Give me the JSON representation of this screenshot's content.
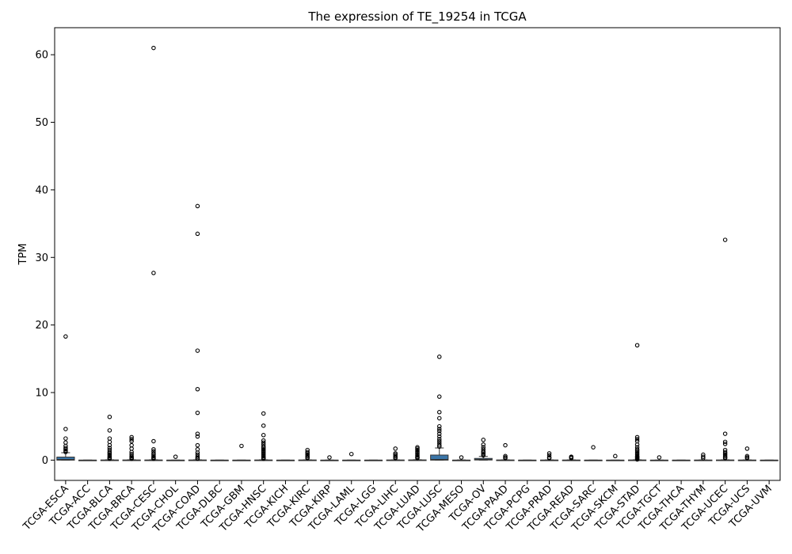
{
  "chart_data": {
    "type": "box",
    "title": "The expression of TE_19254 in TCGA",
    "xlabel": "",
    "ylabel": "TPM",
    "ylim": [
      -3,
      64
    ],
    "yticks": [
      0,
      10,
      20,
      30,
      40,
      50,
      60
    ],
    "grid": false,
    "box_color": "#3a75a8",
    "categories": [
      "TCGA-ESCA",
      "TCGA-ACC",
      "TCGA-BLCA",
      "TCGA-BRCA",
      "TCGA-CESC",
      "TCGA-CHOL",
      "TCGA-COAD",
      "TCGA-DLBC",
      "TCGA-GBM",
      "TCGA-HNSC",
      "TCGA-KICH",
      "TCGA-KIRC",
      "TCGA-KIRP",
      "TCGA-LAML",
      "TCGA-LGG",
      "TCGA-LIHC",
      "TCGA-LUAD",
      "TCGA-LUSC",
      "TCGA-MESO",
      "TCGA-OV",
      "TCGA-PAAD",
      "TCGA-PCPG",
      "TCGA-PRAD",
      "TCGA-READ",
      "TCGA-SARC",
      "TCGA-SKCM",
      "TCGA-STAD",
      "TCGA-TGCT",
      "TCGA-THCA",
      "TCGA-THYM",
      "TCGA-UCEC",
      "TCGA-UCS",
      "TCGA-UVM"
    ],
    "boxes": [
      {
        "q1": 0.0,
        "median": 0.1,
        "q3": 0.45,
        "whislo": 0,
        "whishi": 1.1,
        "outliers": [
          18.3,
          4.6,
          3.2,
          2.6,
          2.1,
          1.8,
          1.6,
          1.4,
          1.2
        ]
      },
      {
        "q1": 0,
        "median": 0,
        "q3": 0,
        "whislo": 0,
        "whishi": 0,
        "outliers": []
      },
      {
        "q1": 0,
        "median": 0,
        "q3": 0.02,
        "whislo": 0,
        "whishi": 0.05,
        "outliers": [
          6.4,
          4.4,
          3.2,
          2.7,
          2.2,
          1.8,
          1.5,
          1.2,
          1.0,
          0.8,
          0.6,
          0.4,
          0.3,
          0.2
        ]
      },
      {
        "q1": 0,
        "median": 0,
        "q3": 0.02,
        "whislo": 0,
        "whishi": 0.05,
        "outliers": [
          3.4,
          3.1,
          2.8,
          2.2,
          1.7,
          1.2,
          0.9,
          0.6,
          0.4,
          0.3,
          0.2
        ]
      },
      {
        "q1": 0,
        "median": 0,
        "q3": 0.02,
        "whislo": 0,
        "whishi": 0.05,
        "outliers": [
          61.0,
          27.7,
          2.8,
          1.6,
          1.3,
          1.0,
          0.8,
          0.6,
          0.4,
          0.3,
          0.2
        ]
      },
      {
        "q1": 0,
        "median": 0,
        "q3": 0,
        "whislo": 0,
        "whishi": 0,
        "outliers": [
          0.5
        ]
      },
      {
        "q1": 0,
        "median": 0,
        "q3": 0.02,
        "whislo": 0,
        "whishi": 0.05,
        "outliers": [
          37.6,
          33.5,
          16.2,
          10.5,
          7.0,
          3.9,
          3.5,
          2.2,
          1.6,
          1.1,
          0.8,
          0.5,
          0.3,
          0.2
        ]
      },
      {
        "q1": 0,
        "median": 0,
        "q3": 0,
        "whislo": 0,
        "whishi": 0,
        "outliers": []
      },
      {
        "q1": 0,
        "median": 0,
        "q3": 0,
        "whislo": 0,
        "whishi": 0,
        "outliers": [
          2.1
        ]
      },
      {
        "q1": 0,
        "median": 0,
        "q3": 0.02,
        "whislo": 0,
        "whishi": 0.05,
        "outliers": [
          6.9,
          5.1,
          3.7,
          2.9,
          2.6,
          2.3,
          2.0,
          1.8,
          1.6,
          1.4,
          1.2,
          1.0,
          0.8,
          0.6,
          0.4,
          0.3,
          0.2
        ]
      },
      {
        "q1": 0,
        "median": 0,
        "q3": 0,
        "whislo": 0,
        "whishi": 0,
        "outliers": []
      },
      {
        "q1": 0,
        "median": 0,
        "q3": 0.02,
        "whislo": 0,
        "whishi": 0.04,
        "outliers": [
          1.5,
          1.2,
          1.0,
          0.8,
          0.6,
          0.4,
          0.3
        ]
      },
      {
        "q1": 0,
        "median": 0,
        "q3": 0,
        "whislo": 0,
        "whishi": 0,
        "outliers": [
          0.4
        ]
      },
      {
        "q1": 0,
        "median": 0,
        "q3": 0,
        "whislo": 0,
        "whishi": 0,
        "outliers": [
          0.9
        ]
      },
      {
        "q1": 0,
        "median": 0,
        "q3": 0,
        "whislo": 0,
        "whishi": 0,
        "outliers": []
      },
      {
        "q1": 0,
        "median": 0,
        "q3": 0.02,
        "whislo": 0,
        "whishi": 0.04,
        "outliers": [
          1.7,
          1.0,
          0.8,
          0.6,
          0.4,
          0.3
        ]
      },
      {
        "q1": 0,
        "median": 0,
        "q3": 0.03,
        "whislo": 0,
        "whishi": 0.06,
        "outliers": [
          1.9,
          1.7,
          1.5,
          1.3,
          1.1,
          0.9,
          0.7,
          0.5,
          0.4,
          0.3
        ]
      },
      {
        "q1": 0.0,
        "median": 0.1,
        "q3": 0.75,
        "whislo": 0,
        "whishi": 1.8,
        "outliers": [
          15.3,
          9.4,
          7.1,
          6.2,
          5.0,
          4.6,
          4.3,
          3.9,
          3.5,
          3.1,
          2.8,
          2.5,
          2.2,
          2.0
        ]
      },
      {
        "q1": 0,
        "median": 0,
        "q3": 0,
        "whislo": 0,
        "whishi": 0.02,
        "outliers": [
          0.4
        ]
      },
      {
        "q1": 0.02,
        "median": 0.1,
        "q3": 0.25,
        "whislo": 0,
        "whishi": 0.55,
        "outliers": [
          3.0,
          2.3,
          1.9,
          1.6,
          1.3,
          1.1,
          0.9,
          0.7
        ]
      },
      {
        "q1": 0,
        "median": 0,
        "q3": 0.02,
        "whislo": 0,
        "whishi": 0.04,
        "outliers": [
          2.2,
          0.6,
          0.4,
          0.3
        ]
      },
      {
        "q1": 0,
        "median": 0,
        "q3": 0,
        "whislo": 0,
        "whishi": 0,
        "outliers": []
      },
      {
        "q1": 0,
        "median": 0,
        "q3": 0.01,
        "whislo": 0,
        "whishi": 0.03,
        "outliers": [
          1.0,
          0.7,
          0.4,
          0.3
        ]
      },
      {
        "q1": 0,
        "median": 0,
        "q3": 0.01,
        "whislo": 0,
        "whishi": 0.03,
        "outliers": [
          0.5,
          0.4,
          0.3
        ]
      },
      {
        "q1": 0,
        "median": 0,
        "q3": 0,
        "whislo": 0,
        "whishi": 0,
        "outliers": [
          1.9
        ]
      },
      {
        "q1": 0,
        "median": 0,
        "q3": 0,
        "whislo": 0,
        "whishi": 0,
        "outliers": [
          0.6
        ]
      },
      {
        "q1": 0,
        "median": 0,
        "q3": 0.02,
        "whislo": 0,
        "whishi": 0.05,
        "outliers": [
          17.0,
          3.4,
          3.1,
          2.8,
          2.3,
          1.9,
          1.6,
          1.4,
          1.2,
          1.0,
          0.8,
          0.6,
          0.5,
          0.4,
          0.3,
          0.2,
          0.1
        ]
      },
      {
        "q1": 0,
        "median": 0,
        "q3": 0,
        "whislo": 0,
        "whishi": 0,
        "outliers": [
          0.4
        ]
      },
      {
        "q1": 0,
        "median": 0,
        "q3": 0,
        "whislo": 0,
        "whishi": 0,
        "outliers": []
      },
      {
        "q1": 0,
        "median": 0,
        "q3": 0.01,
        "whislo": 0,
        "whishi": 0.02,
        "outliers": [
          0.8,
          0.5,
          0.3
        ]
      },
      {
        "q1": 0,
        "median": 0,
        "q3": 0.02,
        "whislo": 0,
        "whishi": 0.05,
        "outliers": [
          32.6,
          3.9,
          2.7,
          2.4,
          1.5,
          1.2,
          1.0,
          0.8,
          0.6,
          0.4,
          0.3
        ]
      },
      {
        "q1": 0,
        "median": 0,
        "q3": 0.01,
        "whislo": 0,
        "whishi": 0.03,
        "outliers": [
          1.7,
          0.6,
          0.4,
          0.3
        ]
      },
      {
        "q1": 0,
        "median": 0,
        "q3": 0,
        "whislo": 0,
        "whishi": 0,
        "outliers": []
      }
    ]
  }
}
